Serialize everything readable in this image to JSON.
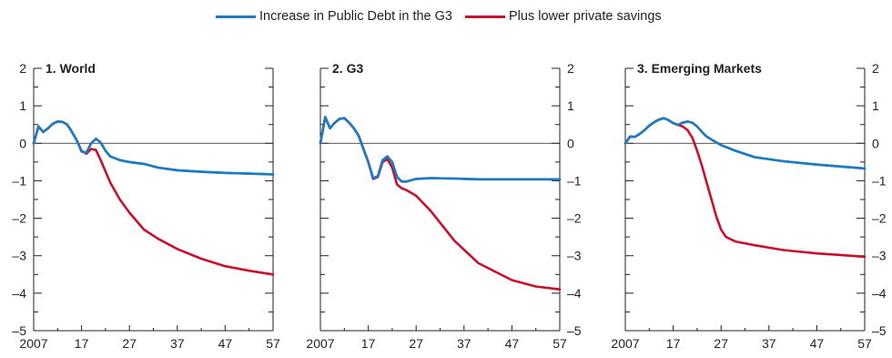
{
  "legend": {
    "blue_label": "Increase in Public Debt in the G3",
    "red_label": "Plus lower private savings",
    "blue_color": "#1f7bbf",
    "red_color": "#c8102e"
  },
  "chart_data": [
    {
      "type": "line",
      "title": "1. World",
      "x_tick_labels": [
        "2007",
        "17",
        "27",
        "37",
        "47",
        "57"
      ],
      "x_ticks": [
        2007,
        2017,
        2027,
        2037,
        2047,
        2057
      ],
      "y_ticks": [
        -5,
        -4,
        -3,
        -2,
        -1,
        0,
        1,
        2
      ],
      "y_tick_labels": [
        "–5",
        "–4",
        "–3",
        "–2",
        "–1",
        "0",
        "1",
        "2"
      ],
      "xlim": [
        2007,
        2057
      ],
      "ylim": [
        -5,
        2
      ],
      "y_axis_side": "left",
      "series": [
        {
          "name": "Increase in Public Debt in the G3",
          "color": "#1f7bbf",
          "x": [
            2007,
            2008,
            2009,
            2010,
            2011,
            2012,
            2013,
            2014,
            2015,
            2016,
            2017,
            2018,
            2019,
            2020,
            2021,
            2022,
            2023,
            2025,
            2027,
            2030,
            2033,
            2037,
            2042,
            2047,
            2052,
            2057
          ],
          "y": [
            0,
            0.45,
            0.3,
            0.4,
            0.52,
            0.58,
            0.57,
            0.5,
            0.3,
            0.08,
            -0.22,
            -0.25,
            0.0,
            0.12,
            0.02,
            -0.2,
            -0.35,
            -0.45,
            -0.5,
            -0.55,
            -0.65,
            -0.72,
            -0.76,
            -0.79,
            -0.81,
            -0.83
          ]
        },
        {
          "name": "Plus lower private savings",
          "color": "#c8102e",
          "x": [
            2007,
            2008,
            2009,
            2010,
            2011,
            2012,
            2013,
            2014,
            2015,
            2016,
            2017,
            2018,
            2019,
            2020,
            2021,
            2022,
            2023,
            2025,
            2027,
            2030,
            2033,
            2037,
            2042,
            2047,
            2052,
            2057
          ],
          "y": [
            0,
            0.45,
            0.3,
            0.4,
            0.52,
            0.58,
            0.57,
            0.5,
            0.3,
            0.08,
            -0.2,
            -0.28,
            -0.15,
            -0.18,
            -0.45,
            -0.75,
            -1.05,
            -1.5,
            -1.85,
            -2.3,
            -2.55,
            -2.82,
            -3.08,
            -3.28,
            -3.4,
            -3.5
          ]
        }
      ]
    },
    {
      "type": "line",
      "title": "2. G3",
      "x_tick_labels": [
        "2007",
        "17",
        "27",
        "37",
        "47",
        "57"
      ],
      "x_ticks": [
        2007,
        2017,
        2027,
        2037,
        2047,
        2057
      ],
      "y_ticks": [
        -5,
        -4,
        -3,
        -2,
        -1,
        0,
        1,
        2
      ],
      "y_tick_labels": [
        "–5",
        "–4",
        "–3",
        "–2",
        "–1",
        "0",
        "1",
        "2"
      ],
      "xlim": [
        2007,
        2057
      ],
      "ylim": [
        -5,
        2
      ],
      "y_axis_side": "right",
      "series": [
        {
          "name": "Increase in Public Debt in the G3",
          "color": "#1f7bbf",
          "x": [
            2007,
            2008,
            2009,
            2010,
            2011,
            2012,
            2013,
            2014,
            2015,
            2016,
            2017,
            2018,
            2019,
            2020,
            2021,
            2022,
            2023,
            2024,
            2025,
            2027,
            2030,
            2035,
            2040,
            2047,
            2052,
            2057
          ],
          "y": [
            0,
            0.7,
            0.4,
            0.55,
            0.65,
            0.67,
            0.55,
            0.4,
            0.2,
            -0.15,
            -0.5,
            -0.93,
            -0.88,
            -0.45,
            -0.35,
            -0.5,
            -0.9,
            -1.02,
            -1.02,
            -0.95,
            -0.93,
            -0.94,
            -0.96,
            -0.96,
            -0.96,
            -0.96
          ]
        },
        {
          "name": "Plus lower private savings",
          "color": "#c8102e",
          "x": [
            2007,
            2008,
            2009,
            2010,
            2011,
            2012,
            2013,
            2014,
            2015,
            2016,
            2017,
            2018,
            2019,
            2020,
            2021,
            2022,
            2023,
            2024,
            2025,
            2027,
            2030,
            2035,
            2040,
            2047,
            2052,
            2057
          ],
          "y": [
            0,
            0.7,
            0.4,
            0.55,
            0.65,
            0.67,
            0.55,
            0.4,
            0.2,
            -0.15,
            -0.5,
            -0.95,
            -0.9,
            -0.5,
            -0.42,
            -0.65,
            -1.1,
            -1.2,
            -1.25,
            -1.4,
            -1.8,
            -2.6,
            -3.2,
            -3.65,
            -3.82,
            -3.9
          ]
        }
      ]
    },
    {
      "type": "line",
      "title": "3. Emerging Markets",
      "x_tick_labels": [
        "2007",
        "17",
        "27",
        "37",
        "47",
        "57"
      ],
      "x_ticks": [
        2007,
        2017,
        2027,
        2037,
        2047,
        2057
      ],
      "y_ticks": [
        -5,
        -4,
        -3,
        -2,
        -1,
        0,
        1,
        2
      ],
      "y_tick_labels": [
        "–5",
        "–4",
        "–3",
        "–2",
        "–1",
        "0",
        "1",
        "2"
      ],
      "xlim": [
        2007,
        2057
      ],
      "ylim": [
        -5,
        2
      ],
      "y_axis_side": "right",
      "series": [
        {
          "name": "Increase in Public Debt in the G3",
          "color": "#1f7bbf",
          "x": [
            2007,
            2008,
            2009,
            2010,
            2011,
            2012,
            2013,
            2014,
            2015,
            2016,
            2017,
            2018,
            2019,
            2020,
            2021,
            2022,
            2023,
            2024,
            2025,
            2027,
            2030,
            2034,
            2040,
            2047,
            2052,
            2057
          ],
          "y": [
            0,
            0.18,
            0.17,
            0.25,
            0.35,
            0.47,
            0.56,
            0.63,
            0.67,
            0.62,
            0.54,
            0.49,
            0.55,
            0.58,
            0.55,
            0.45,
            0.3,
            0.18,
            0.1,
            -0.05,
            -0.2,
            -0.37,
            -0.48,
            -0.57,
            -0.62,
            -0.67
          ]
        },
        {
          "name": "Plus lower private savings",
          "color": "#c8102e",
          "x": [
            2007,
            2008,
            2009,
            2010,
            2011,
            2012,
            2013,
            2014,
            2015,
            2016,
            2017,
            2018,
            2019,
            2020,
            2021,
            2022,
            2023,
            2024,
            2025,
            2026,
            2027,
            2028,
            2030,
            2034,
            2040,
            2047,
            2052,
            2057
          ],
          "y": [
            0,
            0.18,
            0.17,
            0.25,
            0.35,
            0.47,
            0.56,
            0.63,
            0.67,
            0.62,
            0.54,
            0.49,
            0.45,
            0.35,
            0.15,
            -0.2,
            -0.6,
            -1.05,
            -1.5,
            -1.95,
            -2.3,
            -2.5,
            -2.62,
            -2.72,
            -2.85,
            -2.94,
            -2.98,
            -3.03
          ]
        }
      ]
    }
  ]
}
